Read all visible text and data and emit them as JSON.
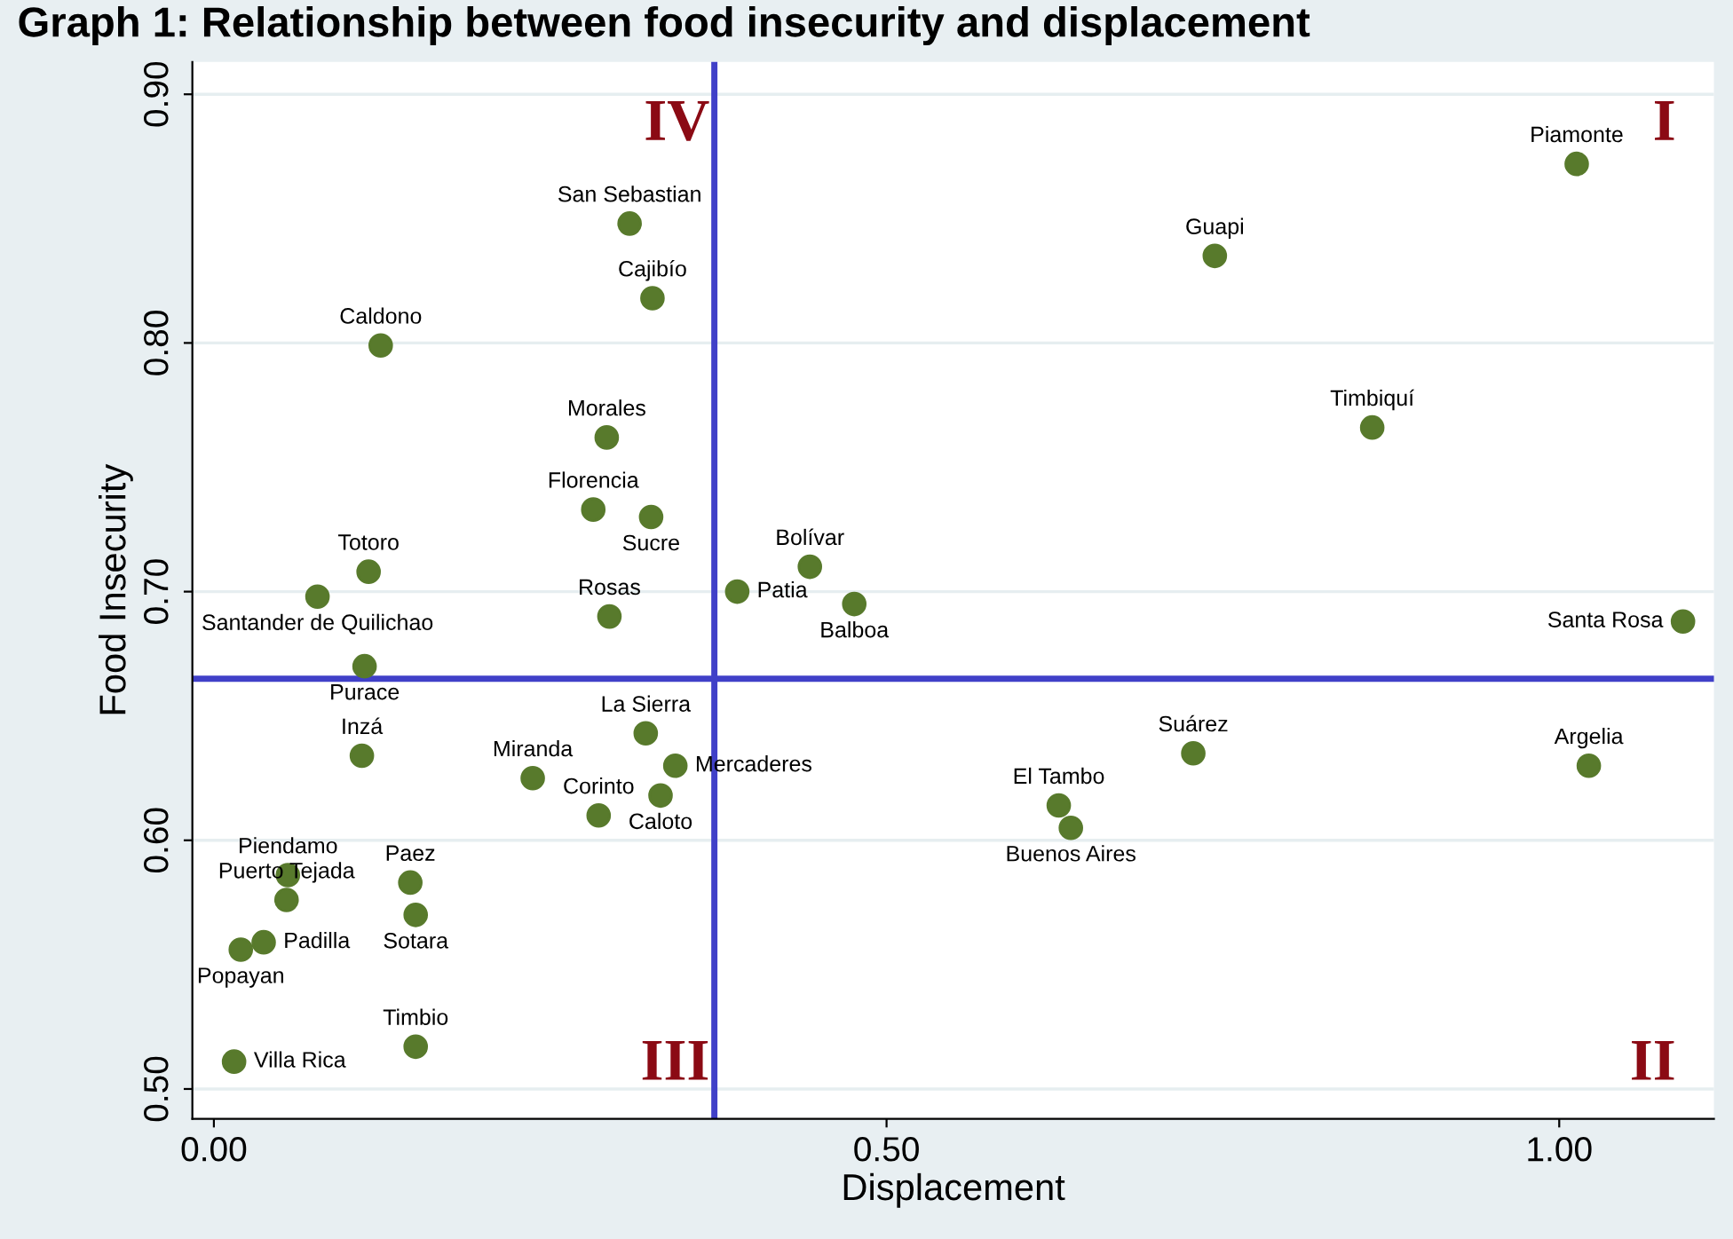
{
  "chart_data": {
    "type": "scatter",
    "title": "Graph 1: Relationship between food insecurity and displacement",
    "xlabel": "Displacement",
    "ylabel": "Food Insecurity",
    "series": [
      {
        "color": "#587a2c",
        "marker": "circle",
        "x": [
          1.013,
          0.744,
          0.861,
          1.092,
          1.022,
          0.728,
          0.628,
          0.637,
          0.389,
          0.443,
          0.476,
          0.309,
          0.326,
          0.124,
          0.292,
          0.282,
          0.325,
          0.115,
          0.077,
          0.294,
          0.112,
          0.11,
          0.237,
          0.321,
          0.343,
          0.332,
          0.286,
          0.055,
          0.054,
          0.146,
          0.15,
          0.037,
          0.02,
          0.015,
          0.15
        ],
        "values": [
          0.872,
          0.835,
          0.766,
          0.688,
          0.63,
          0.635,
          0.614,
          0.605,
          0.7,
          0.71,
          0.695,
          0.848,
          0.818,
          0.799,
          0.762,
          0.733,
          0.73,
          0.708,
          0.698,
          0.69,
          0.67,
          0.634,
          0.625,
          0.643,
          0.63,
          0.618,
          0.61,
          0.586,
          0.576,
          0.583,
          0.57,
          0.559,
          0.556,
          0.511,
          0.517
        ],
        "value_labels": [
          "Piamonte",
          "Guapi",
          "Timbiquí",
          "Santa Rosa",
          "Argelia",
          "Suárez",
          "El Tambo",
          "Buenos Aires",
          "Patia",
          "Bolívar",
          "Balboa",
          "San Sebastian",
          "Cajibío",
          "Caldono",
          "Morales",
          "Florencia",
          "Sucre",
          "Totoro",
          "Santander de Quilichao",
          "Rosas",
          "Purace",
          "Inzá",
          "Miranda",
          "La Sierra",
          "Mercaderes",
          "Caloto",
          "Corinto",
          "Piendamo",
          "Puerto Tejada",
          "Paez",
          "Sotara",
          "Padilla",
          "Popayan",
          "Villa Rica",
          "Timbio"
        ]
      }
    ],
    "xlim": [
      -0.016,
      1.115
    ],
    "ylim": [
      0.488,
      0.913
    ],
    "xticks": [
      {
        "value": 0,
        "label": "0.00"
      },
      {
        "value": 0.5,
        "label": "0.50"
      },
      {
        "value": 1,
        "label": "1.00"
      }
    ],
    "yticks": [
      {
        "value": 0.5,
        "label": "0.50"
      },
      {
        "value": 0.6,
        "label": "0.60"
      },
      {
        "value": 0.7,
        "label": "0.70"
      },
      {
        "value": 0.8,
        "label": "0.80"
      },
      {
        "value": 0.9,
        "label": "0.90"
      }
    ],
    "grid": "y",
    "legend": false,
    "ref_lines": [
      {
        "axis": "x",
        "value": 0.372,
        "color": "#4040c8"
      },
      {
        "axis": "y",
        "value": 0.665,
        "color": "#4040c8"
      }
    ],
    "annotations": [
      "I",
      "II",
      "III",
      "IV"
    ]
  }
}
